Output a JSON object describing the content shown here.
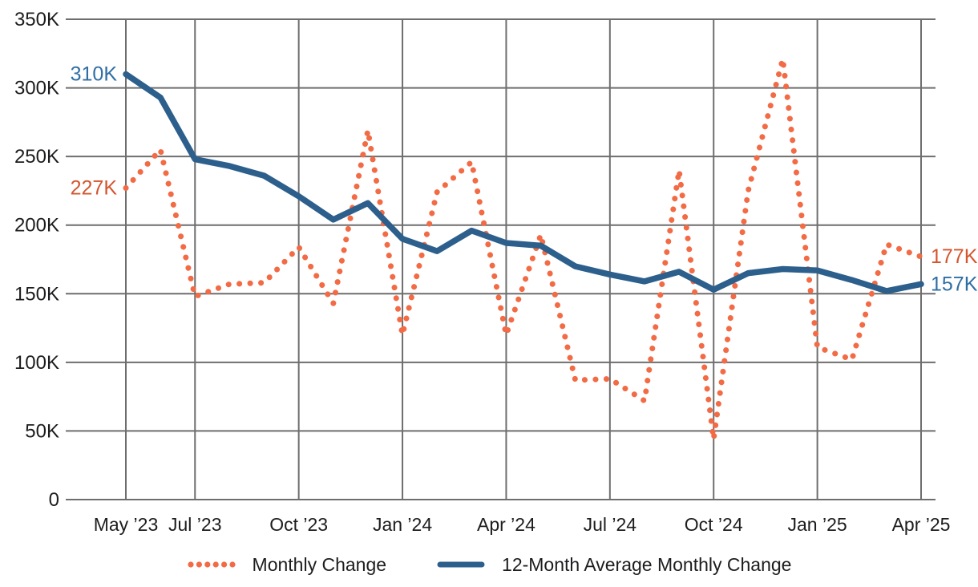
{
  "chart_data": {
    "type": "line",
    "title": "",
    "categories": [
      "May ’23",
      "Jun ’23",
      "Jul ’23",
      "Aug ’23",
      "Sep ’23",
      "Oct ’23",
      "Nov ’23",
      "Dec ’23",
      "Jan ’24",
      "Feb ’24",
      "Mar ’24",
      "Apr ’24",
      "May ’24",
      "Jun ’24",
      "Jul ’24",
      "Aug ’24",
      "Sep ’24",
      "Oct ’24",
      "Nov ’24",
      "Dec ’24",
      "Jan ’25",
      "Feb ’25",
      "Mar ’25",
      "Apr ’25"
    ],
    "series": [
      {
        "name": "Monthly Change",
        "style": "dotted",
        "line_color": "#F26B45",
        "label_color": "#D4552E",
        "values": [
          227,
          255,
          148,
          157,
          158,
          184,
          143,
          269,
          120,
          224,
          246,
          120,
          193,
          87,
          88,
          72,
          240,
          44,
          225,
          321,
          111,
          102,
          186,
          177
        ]
      },
      {
        "name": "12-Month Average Monthly Change",
        "style": "solid",
        "line_color": "#2D5F8C",
        "label_color": "#2F6EA3",
        "values": [
          310,
          293,
          248,
          243,
          236,
          221,
          204,
          216,
          190,
          181,
          196,
          187,
          185,
          170,
          164,
          159,
          166,
          153,
          165,
          168,
          167,
          160,
          152,
          157
        ]
      }
    ],
    "ylim": [
      0,
      350
    ],
    "yticks": [
      {
        "value": 0,
        "label": "0"
      },
      {
        "value": 50,
        "label": "50K"
      },
      {
        "value": 100,
        "label": "100K"
      },
      {
        "value": 150,
        "label": "150K"
      },
      {
        "value": 200,
        "label": "200K"
      },
      {
        "value": 250,
        "label": "250K"
      },
      {
        "value": 300,
        "label": "300K"
      },
      {
        "value": 350,
        "label": "350K"
      }
    ],
    "xticks": [
      {
        "index": 0,
        "label": "May ’23"
      },
      {
        "index": 2,
        "label": "Jul ’23"
      },
      {
        "index": 5,
        "label": "Oct ’23"
      },
      {
        "index": 8,
        "label": "Jan ’24"
      },
      {
        "index": 11,
        "label": "Apr ’24"
      },
      {
        "index": 14,
        "label": "Jul ’24"
      },
      {
        "index": 17,
        "label": "Oct ’24"
      },
      {
        "index": 20,
        "label": "Jan ’25"
      },
      {
        "index": 23,
        "label": "Apr ’25"
      }
    ],
    "point_labels": [
      {
        "series": 1,
        "index": 0,
        "text": "310K",
        "side": "left"
      },
      {
        "series": 0,
        "index": 0,
        "text": "227K",
        "side": "left"
      },
      {
        "series": 0,
        "index": 23,
        "text": "177K",
        "side": "right"
      },
      {
        "series": 1,
        "index": 23,
        "text": "157K",
        "side": "right"
      }
    ],
    "grid": true,
    "legend_position": "bottom"
  },
  "legend": {
    "items": [
      {
        "label": "Monthly Change"
      },
      {
        "label": "12-Month Average Monthly Change"
      }
    ]
  },
  "colors": {
    "gridline": "#6E6E6E",
    "axis_text": "#1D1D1F",
    "background": "#FFFFFF"
  }
}
